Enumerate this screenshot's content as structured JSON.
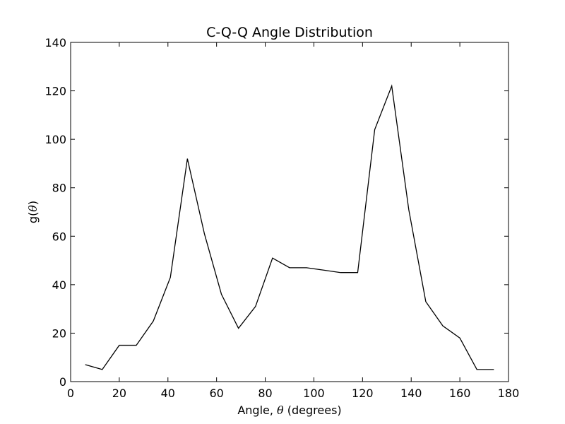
{
  "chart_data": {
    "type": "line",
    "title": "C-Q-Q Angle Distribution",
    "xlabel_prefix": "Angle, ",
    "xlabel_symbol": "θ",
    "xlabel_suffix": " (degrees)",
    "ylabel_prefix": "g(",
    "ylabel_symbol": "θ",
    "ylabel_suffix": ")",
    "xlim": [
      0,
      180
    ],
    "ylim": [
      0,
      140
    ],
    "xticks": [
      0,
      20,
      40,
      60,
      80,
      100,
      120,
      140,
      160,
      180
    ],
    "yticks": [
      0,
      20,
      40,
      60,
      80,
      100,
      120,
      140
    ],
    "grid": false,
    "line_color": "#000000",
    "series": [
      {
        "x": [
          6,
          13,
          20,
          27,
          34,
          41,
          48,
          55,
          62,
          69,
          76,
          83,
          90,
          97,
          104,
          111,
          118,
          125,
          132,
          139,
          146,
          153,
          160,
          167,
          174
        ],
        "y": [
          7,
          5,
          15,
          15,
          25,
          43,
          92,
          61,
          36,
          22,
          31,
          51,
          47,
          47,
          46,
          45,
          45,
          104,
          122,
          71,
          33,
          23,
          18,
          5,
          5
        ]
      }
    ]
  }
}
